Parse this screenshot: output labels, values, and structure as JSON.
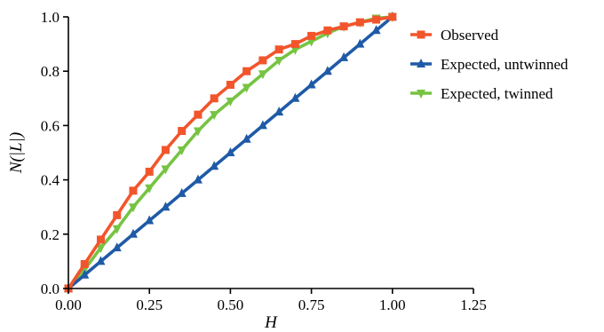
{
  "chart_data": {
    "type": "line",
    "xlabel": "H",
    "ylabel": "N(|L|)",
    "xlim": [
      0,
      1.25
    ],
    "ylim": [
      0,
      1.0
    ],
    "x_ticks": [
      "0.00",
      "0.25",
      "0.50",
      "0.75",
      "1.00",
      "1.25"
    ],
    "y_ticks": [
      "0.0",
      "0.2",
      "0.4",
      "0.6",
      "0.8",
      "1.0"
    ],
    "grid": false,
    "legend_position": "top-right",
    "x": [
      0,
      0.05,
      0.1,
      0.15,
      0.2,
      0.25,
      0.3,
      0.35,
      0.4,
      0.45,
      0.5,
      0.55,
      0.6,
      0.65,
      0.7,
      0.75,
      0.8,
      0.85,
      0.9,
      0.95,
      1.0
    ],
    "series": [
      {
        "name": "Observed",
        "color": "#f2552c",
        "marker": "square",
        "values": [
          0.0,
          0.09,
          0.18,
          0.27,
          0.36,
          0.43,
          0.51,
          0.58,
          0.64,
          0.7,
          0.75,
          0.8,
          0.84,
          0.88,
          0.9,
          0.93,
          0.95,
          0.965,
          0.98,
          0.99,
          1.0
        ]
      },
      {
        "name": "Expected, untwinned",
        "color": "#1f5aa6",
        "marker": "triangle-up",
        "values": [
          0.0,
          0.05,
          0.1,
          0.15,
          0.2,
          0.25,
          0.3,
          0.35,
          0.4,
          0.45,
          0.5,
          0.55,
          0.6,
          0.65,
          0.7,
          0.75,
          0.8,
          0.85,
          0.9,
          0.95,
          1.0
        ]
      },
      {
        "name": "Expected, twinned",
        "color": "#76c442",
        "marker": "triangle-down",
        "values": [
          0.0,
          0.07,
          0.15,
          0.22,
          0.3,
          0.37,
          0.44,
          0.51,
          0.58,
          0.64,
          0.69,
          0.74,
          0.79,
          0.84,
          0.88,
          0.91,
          0.94,
          0.965,
          0.98,
          0.995,
          1.0
        ]
      }
    ]
  }
}
